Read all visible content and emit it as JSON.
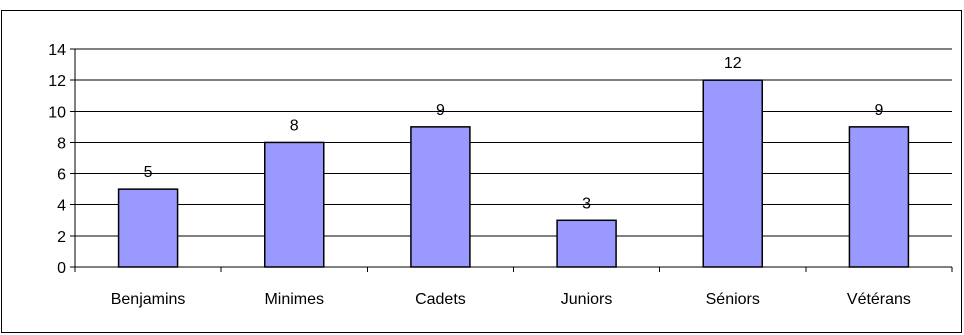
{
  "chart_data": {
    "type": "bar",
    "categories": [
      "Benjamins",
      "Minimes",
      "Cadets",
      "Juniors",
      "Séniors",
      "Vétérans"
    ],
    "values": [
      5,
      8,
      9,
      3,
      12,
      9
    ],
    "title": "",
    "xlabel": "",
    "ylabel": "",
    "ylim": [
      0,
      14
    ],
    "yticks": [
      "0",
      "2",
      "4",
      "6",
      "8",
      "10",
      "12",
      "14"
    ],
    "grid": true,
    "legend": "none",
    "colors": {
      "bar_fill": "#9999ff",
      "bar_stroke": "#000000",
      "grid": "#000000",
      "background": "#ffffff"
    }
  }
}
